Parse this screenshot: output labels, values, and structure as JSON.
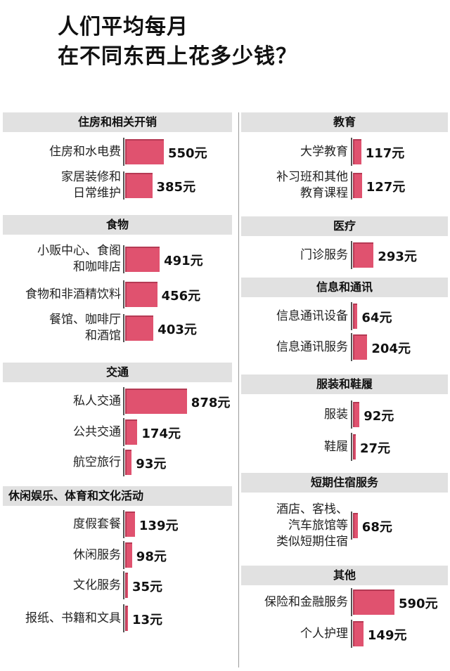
{
  "title": {
    "line1": "人们平均每月",
    "line2": "在不同东西上花多少钱？"
  },
  "unit": "元",
  "colors": {
    "bar": "#e0526f",
    "header_bg": "#e1e1e1",
    "divider": "#9a9a9a"
  },
  "chart_data": {
    "type": "bar",
    "orientation": "horizontal",
    "unit": "元",
    "sections": [
      {
        "name": "住房和相关开销",
        "items": [
          {
            "label": [
              "住房和水电费"
            ],
            "value": 550,
            "value_label": "550元"
          },
          {
            "label": [
              "家居装修和",
              "日常维护"
            ],
            "value": 385,
            "value_label": "385元"
          }
        ]
      },
      {
        "name": "食物",
        "items": [
          {
            "label": [
              "小贩中心、食阁",
              "和咖啡店"
            ],
            "value": 491,
            "value_label": "491元"
          },
          {
            "label": [
              "食物和非酒精饮料"
            ],
            "value": 456,
            "value_label": "456元"
          },
          {
            "label": [
              "餐馆、咖啡厅",
              "和酒馆"
            ],
            "value": 403,
            "value_label": "403元"
          }
        ]
      },
      {
        "name": "交通",
        "items": [
          {
            "label": [
              "私人交通"
            ],
            "value": 878,
            "value_label": "878元"
          },
          {
            "label": [
              "公共交通"
            ],
            "value": 174,
            "value_label": "174元"
          },
          {
            "label": [
              "航空旅行"
            ],
            "value": 93,
            "value_label": "93元"
          }
        ]
      },
      {
        "name": "休闲娱乐、体育和文化活动",
        "items": [
          {
            "label": [
              "度假套餐"
            ],
            "value": 139,
            "value_label": "139元"
          },
          {
            "label": [
              "休闲服务"
            ],
            "value": 98,
            "value_label": "98元"
          },
          {
            "label": [
              "文化服务"
            ],
            "value": 35,
            "value_label": "35元"
          },
          {
            "label": [
              "报纸、书籍和文具"
            ],
            "value": 13,
            "value_label": "13元"
          }
        ]
      },
      {
        "name": "教育",
        "items": [
          {
            "label": [
              "大学教育"
            ],
            "value": 117,
            "value_label": "117元"
          },
          {
            "label": [
              "补习班和其他",
              "教育课程"
            ],
            "value": 127,
            "value_label": "127元"
          }
        ]
      },
      {
        "name": "医疗",
        "items": [
          {
            "label": [
              "门诊服务"
            ],
            "value": 293,
            "value_label": "293元"
          }
        ]
      },
      {
        "name": "信息和通讯",
        "items": [
          {
            "label": [
              "信息通讯设备"
            ],
            "value": 64,
            "value_label": "64元"
          },
          {
            "label": [
              "信息通讯服务"
            ],
            "value": 204,
            "value_label": "204元"
          }
        ]
      },
      {
        "name": "服装和鞋履",
        "items": [
          {
            "label": [
              "服装"
            ],
            "value": 92,
            "value_label": "92元"
          },
          {
            "label": [
              "鞋履"
            ],
            "value": 27,
            "value_label": "27元"
          }
        ]
      },
      {
        "name": "短期住宿服务",
        "items": [
          {
            "label": [
              "酒店、客栈、",
              "汽车旅馆等",
              "类似短期住宿"
            ],
            "value": 68,
            "value_label": "68元"
          }
        ]
      },
      {
        "name": "其他",
        "items": [
          {
            "label": [
              "保险和金融服务"
            ],
            "value": 590,
            "value_label": "590元"
          },
          {
            "label": [
              "个人护理"
            ],
            "value": 149,
            "value_label": "149元"
          }
        ]
      }
    ]
  }
}
